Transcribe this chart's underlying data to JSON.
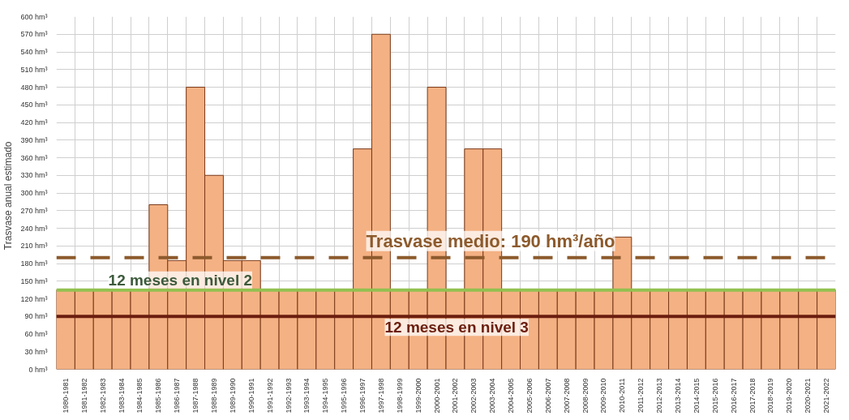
{
  "chart_data": {
    "type": "bar",
    "ylabel": "Trasvase  anual  estimado",
    "categories": [
      "1980-1981",
      "1981-1982",
      "1982-1983",
      "1983-1984",
      "1984-1985",
      "1985-1986",
      "1986-1987",
      "1987-1988",
      "1988-1989",
      "1989-1990",
      "1990-1991",
      "1991-1992",
      "1992-1993",
      "1993-1994",
      "1994-1995",
      "1995-1996",
      "1996-1997",
      "1997-1998",
      "1998-1999",
      "1999-2000",
      "2000-2001",
      "2001-2002",
      "2002-2003",
      "2003-2004",
      "2004-2005",
      "2005-2006",
      "2006-2007",
      "2007-2008",
      "2008-2009",
      "2009-2010",
      "2010-2011",
      "2011-2012",
      "2012-2013",
      "2013-2014",
      "2014-2015",
      "2015-2016",
      "2016-2017",
      "2017-2018",
      "2018-2019",
      "2019-2020",
      "2020-2021",
      "2021-2022"
    ],
    "values": [
      135,
      135,
      135,
      135,
      135,
      280,
      185,
      480,
      330,
      185,
      185,
      135,
      135,
      135,
      135,
      135,
      375,
      570,
      135,
      135,
      480,
      135,
      375,
      375,
      135,
      135,
      135,
      135,
      135,
      135,
      225,
      135,
      135,
      135,
      135,
      135,
      135,
      135,
      135,
      135,
      135,
      135
    ],
    "color": "#f4b183",
    "ylim": [
      0,
      600
    ],
    "yticks": [
      {
        "value": 0,
        "label": "0 hm³"
      },
      {
        "value": 30,
        "label": "30 hm³"
      },
      {
        "value": 60,
        "label": "60 hm³"
      },
      {
        "value": 90,
        "label": "90 hm³"
      },
      {
        "value": 120,
        "label": "120 hm³"
      },
      {
        "value": 150,
        "label": "150 hm³"
      },
      {
        "value": 180,
        "label": "180 hm³"
      },
      {
        "value": 210,
        "label": "210 hm³"
      },
      {
        "value": 240,
        "label": "240 hm³"
      },
      {
        "value": 270,
        "label": "270 hm³"
      },
      {
        "value": 300,
        "label": "300 hm³"
      },
      {
        "value": 330,
        "label": "330 hm³"
      },
      {
        "value": 360,
        "label": "360 hm³"
      },
      {
        "value": 390,
        "label": "390 hm³"
      },
      {
        "value": 420,
        "label": "420 hm³"
      },
      {
        "value": 450,
        "label": "450 hm³"
      },
      {
        "value": 480,
        "label": "480 hm³"
      },
      {
        "value": 510,
        "label": "510 hm³"
      },
      {
        "value": 540,
        "label": "540 hm³"
      },
      {
        "value": 570,
        "label": "570 hm³"
      },
      {
        "value": 600,
        "label": "600 hm³"
      }
    ],
    "grid": true,
    "ref_lines": [
      {
        "axis": "y",
        "value": 190,
        "label": "Trasvase medio: 190 hm³/año",
        "color": "#8c5a2c",
        "line_style": "dashed"
      },
      {
        "axis": "y",
        "value": 135,
        "label": "12 meses en nivel 2",
        "color": "#92c050",
        "line_style": "solid"
      },
      {
        "axis": "y",
        "value": 90,
        "label": "12 meses en nivel 3",
        "color": "#6b1e0e",
        "line_style": "solid"
      }
    ]
  }
}
